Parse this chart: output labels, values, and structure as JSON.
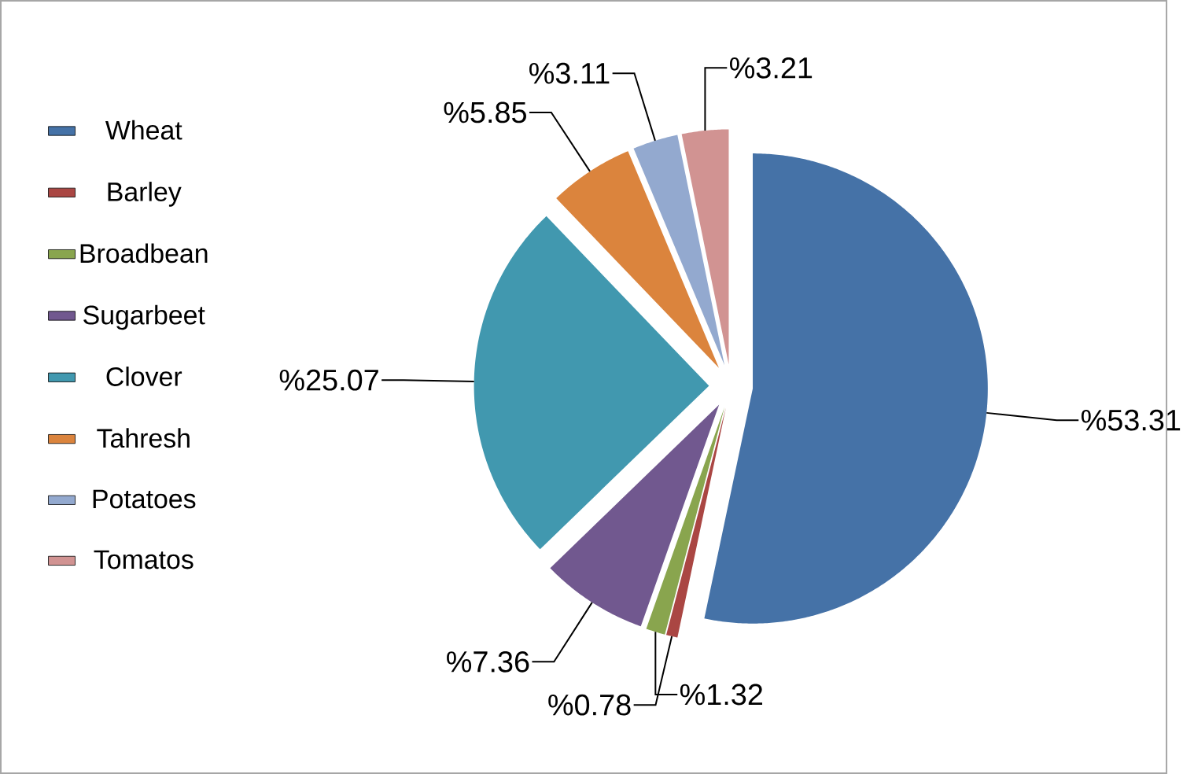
{
  "chart_data": {
    "type": "pie",
    "categories": [
      "Wheat",
      "Barley",
      "Broadbean",
      "Sugarbeet",
      "Clover",
      "Tahresh",
      "Potatoes",
      "Tomatos"
    ],
    "values": [
      53.31,
      0.78,
      1.32,
      7.36,
      25.07,
      5.85,
      3.11,
      3.21
    ],
    "value_labels": [
      "%53.31",
      "%0.78",
      "%1.32",
      "%7.36",
      "%25.07",
      "%5.85",
      "%3.11",
      "%3.21"
    ],
    "colors": [
      "#4572a7",
      "#aa4643",
      "#89a54e",
      "#71588f",
      "#4198af",
      "#db843d",
      "#93a9cf",
      "#d19392"
    ],
    "legend": "left"
  }
}
